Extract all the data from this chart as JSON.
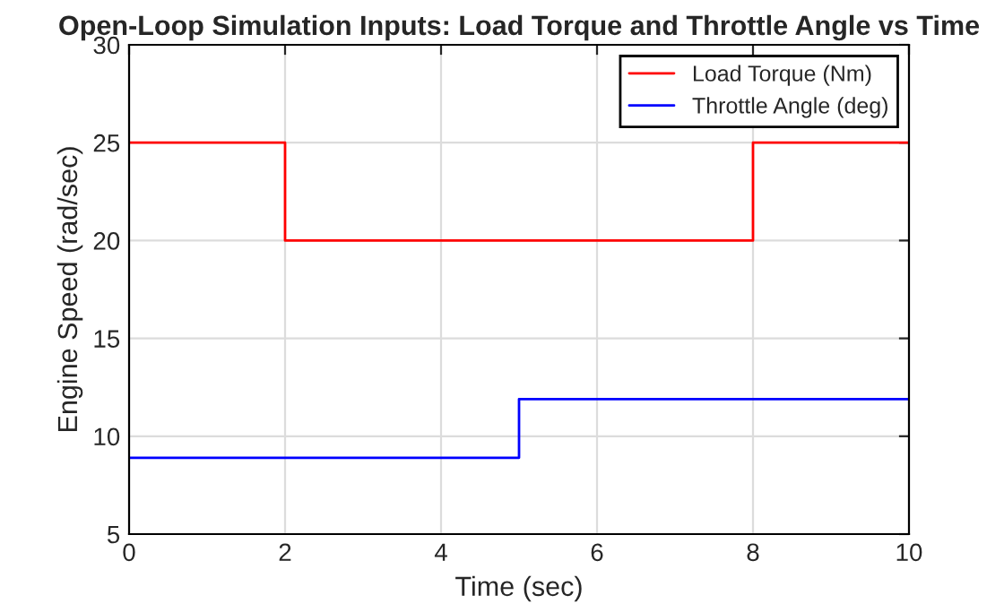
{
  "chart_data": {
    "type": "step",
    "title": "Open-Loop Simulation Inputs: Load Torque and Throttle Angle vs Time",
    "xlabel": "Time (sec)",
    "ylabel": "Engine Speed (rad/sec)",
    "series": [
      {
        "name": "Load Torque (Nm)",
        "color": "#ff0000",
        "x": [
          0,
          2,
          8,
          10
        ],
        "values": [
          25,
          20,
          25,
          25
        ]
      },
      {
        "name": "Throttle Angle (deg)",
        "color": "#0000ff",
        "x": [
          0,
          5,
          10
        ],
        "values": [
          8.9,
          11.9,
          11.9
        ]
      }
    ],
    "xlim": [
      0,
      10
    ],
    "xticks": [
      0,
      2,
      4,
      6,
      8,
      10
    ],
    "ylim": [
      5,
      30
    ],
    "yticks": [
      5,
      10,
      15,
      20,
      25,
      30
    ],
    "grid": true,
    "legend": "top right",
    "line_style": "solid",
    "marker": "none"
  }
}
